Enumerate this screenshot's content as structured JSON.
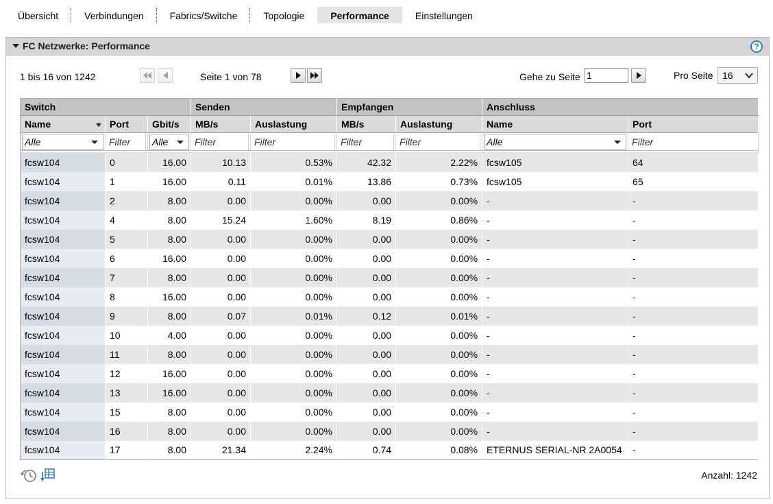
{
  "tabs": [
    {
      "label": "Übersicht",
      "active": false
    },
    {
      "label": "Verbindungen",
      "active": false
    },
    {
      "label": "Fabrics/Switche",
      "active": false
    },
    {
      "label": "Topologie",
      "active": false
    },
    {
      "label": "Performance",
      "active": true
    },
    {
      "label": "Einstellungen",
      "active": false
    }
  ],
  "panel": {
    "title": "FC Netzwerke: Performance",
    "help_icon": "question-icon"
  },
  "pager": {
    "range_text": "1 bis 16 von 1242",
    "page_text": "Seite 1 von 78",
    "goto_label": "Gehe zu Seite",
    "goto_value": "1",
    "perpage_label": "Pro Seite",
    "perpage_value": "16"
  },
  "table": {
    "groups": [
      "Switch",
      "Senden",
      "Empfangen",
      "Anschluss"
    ],
    "columns": [
      "Name",
      "Port",
      "Gbit/s",
      "MB/s",
      "Auslastung",
      "MB/s",
      "Auslastung",
      "Name",
      "Port"
    ],
    "filters": [
      "Alle",
      "Filter",
      "Alle",
      "Filter",
      "Filter",
      "Filter",
      "Filter",
      "Alle",
      "Filter"
    ],
    "rows": [
      [
        "fcsw104",
        "0",
        "16.00",
        "10.13",
        "0.53%",
        "42.32",
        "2.22%",
        "fcsw105",
        "64"
      ],
      [
        "fcsw104",
        "1",
        "16.00",
        "0.11",
        "0.01%",
        "13.86",
        "0.73%",
        "fcsw105",
        "65"
      ],
      [
        "fcsw104",
        "2",
        "8.00",
        "0.00",
        "0.00%",
        "0.00",
        "0.00%",
        "-",
        "-"
      ],
      [
        "fcsw104",
        "4",
        "8.00",
        "15.24",
        "1.60%",
        "8.19",
        "0.86%",
        "-",
        "-"
      ],
      [
        "fcsw104",
        "5",
        "8.00",
        "0.00",
        "0.00%",
        "0.00",
        "0.00%",
        "-",
        "-"
      ],
      [
        "fcsw104",
        "6",
        "16.00",
        "0.00",
        "0.00%",
        "0.00",
        "0.00%",
        "-",
        "-"
      ],
      [
        "fcsw104",
        "7",
        "8.00",
        "0.00",
        "0.00%",
        "0.00",
        "0.00%",
        "-",
        "-"
      ],
      [
        "fcsw104",
        "8",
        "16.00",
        "0.00",
        "0.00%",
        "0.00",
        "0.00%",
        "-",
        "-"
      ],
      [
        "fcsw104",
        "9",
        "8.00",
        "0.07",
        "0.01%",
        "0.12",
        "0.01%",
        "-",
        "-"
      ],
      [
        "fcsw104",
        "10",
        "4.00",
        "0.00",
        "0.00%",
        "0.00",
        "0.00%",
        "-",
        "-"
      ],
      [
        "fcsw104",
        "11",
        "8.00",
        "0.00",
        "0.00%",
        "0.00",
        "0.00%",
        "-",
        "-"
      ],
      [
        "fcsw104",
        "12",
        "16.00",
        "0.00",
        "0.00%",
        "0.00",
        "0.00%",
        "-",
        "-"
      ],
      [
        "fcsw104",
        "13",
        "16.00",
        "0.00",
        "0.00%",
        "0.00",
        "0.00%",
        "-",
        "-"
      ],
      [
        "fcsw104",
        "15",
        "8.00",
        "0.00",
        "0.00%",
        "0.00",
        "0.00%",
        "-",
        "-"
      ],
      [
        "fcsw104",
        "16",
        "8.00",
        "0.00",
        "0.00%",
        "0.00",
        "0.00%",
        "-",
        "-"
      ],
      [
        "fcsw104",
        "17",
        "8.00",
        "21.34",
        "2.24%",
        "0.74",
        "0.08%",
        "ETERNUS SERIAL-NR 2A0054",
        "-"
      ]
    ]
  },
  "footer": {
    "count_text": "Anzahl: 1242",
    "icons": [
      "history-refresh-icon",
      "export-table-icon"
    ]
  }
}
